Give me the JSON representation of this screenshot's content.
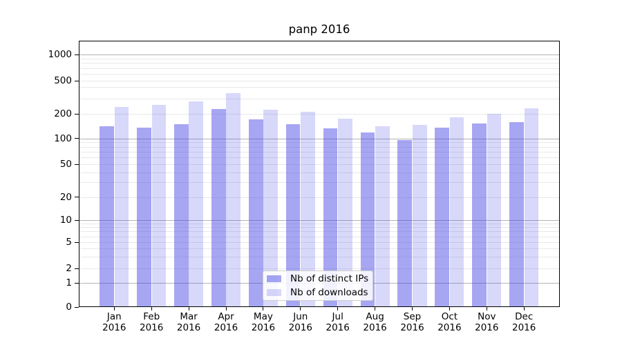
{
  "chart_data": {
    "type": "bar",
    "title": "panp 2016",
    "categories": [
      "Jan 2016",
      "Feb 2016",
      "Mar 2016",
      "Apr 2016",
      "May 2016",
      "Jun 2016",
      "Jul 2016",
      "Aug 2016",
      "Sep 2016",
      "Oct 2016",
      "Nov 2016",
      "Dec 2016"
    ],
    "series": [
      {
        "name": "Nb of distinct IPs",
        "color": "#4040E677",
        "values": [
          140,
          135,
          150,
          226,
          170,
          148,
          133,
          117,
          96,
          135,
          151,
          157
        ]
      },
      {
        "name": "Nb of downloads",
        "color": "#4040E634",
        "values": [
          240,
          253,
          277,
          342,
          223,
          212,
          175,
          141,
          147,
          181,
          200,
          231
        ]
      }
    ],
    "xlabel": "",
    "ylabel": "",
    "yscale": "log-like (compressed toward zero baseline)",
    "yticks": [
      1000,
      500,
      200,
      100,
      50,
      20,
      10,
      5,
      2,
      1,
      0
    ],
    "ylim": [
      0,
      1500
    ],
    "grid": "horizontal, major decades darker + minor lines lighter",
    "legend_position": "lower center inside axes"
  },
  "colors": {
    "bar_distinct_ips": "#4040E677",
    "bar_downloads": "#4040E634",
    "major_grid": "#b3b3b3",
    "minor_grid": "#e8e8e8",
    "axis_frame": "#000000",
    "legend_border": "#cccccc"
  }
}
